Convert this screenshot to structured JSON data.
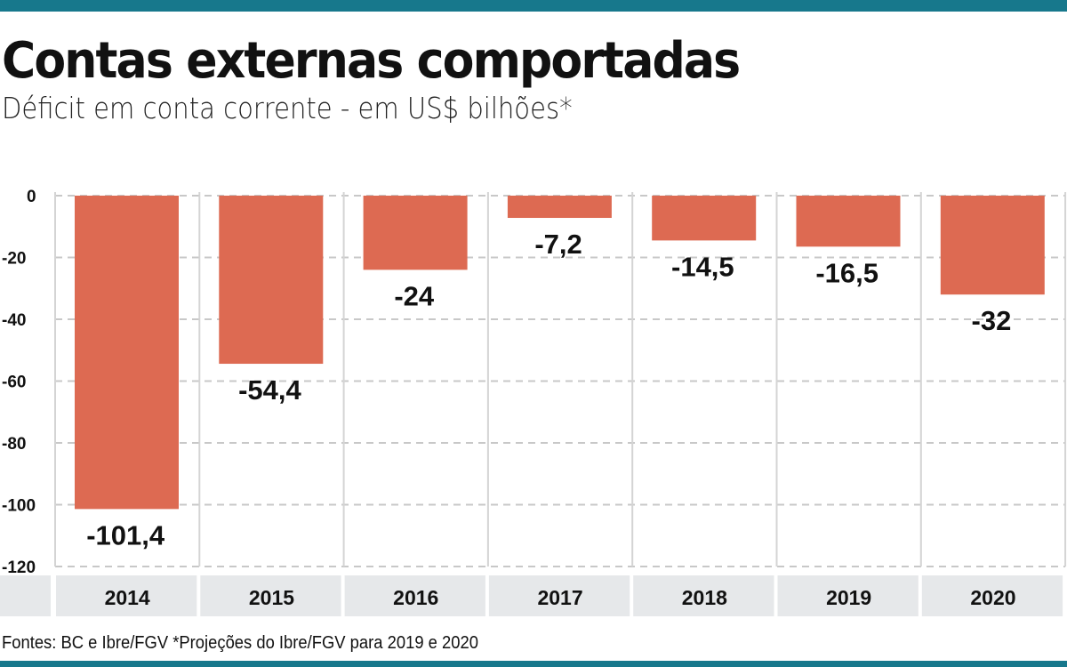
{
  "title": "Contas externas comportadas",
  "subtitle": "Déficit em conta corrente - em US$ bilhões*",
  "footer": "Fontes: BC e Ibre/FGV *Projeções do Ibre/FGV para 2019 e 2020",
  "colors": {
    "bar": "#dd6a52",
    "accent": "#17788c",
    "category_band": "#e6e8ea"
  },
  "chart_data": {
    "type": "bar",
    "title": "Contas externas comportadas",
    "subtitle": "Déficit em conta corrente - em US$ bilhões*",
    "categories": [
      "2014",
      "2015",
      "2016",
      "2017",
      "2018",
      "2019",
      "2020"
    ],
    "values": [
      -101.4,
      -54.4,
      -24,
      -7.2,
      -14.5,
      -16.5,
      -32
    ],
    "data_labels": [
      "-101,4",
      "-54,4",
      "-24",
      "-7,2",
      "-14,5",
      "-16,5",
      "-32"
    ],
    "yticks": [
      0,
      -20,
      -40,
      -60,
      -80,
      -100,
      -120
    ],
    "ylim": [
      -120,
      0
    ],
    "grid": true,
    "xlabel": "",
    "ylabel": ""
  }
}
